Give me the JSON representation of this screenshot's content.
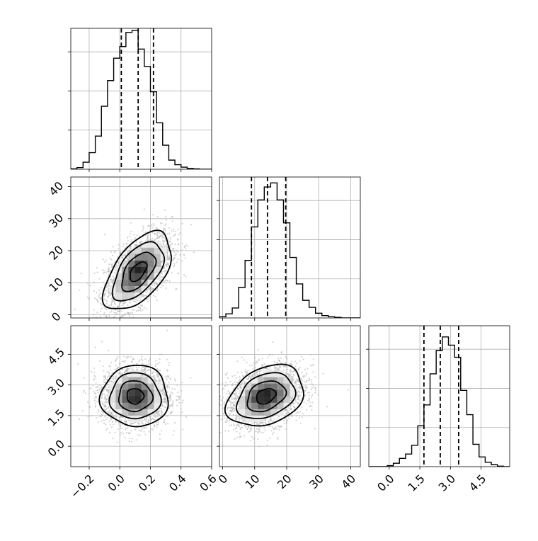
{
  "chart_data": {
    "type": "corner",
    "parameters": [
      "",
      "",
      ""
    ],
    "grid": true,
    "colors": {
      "line": "#000000",
      "scatter": "#b0b0b0",
      "grid": "#b0b0b0"
    },
    "axes": {
      "p0": {
        "range": [
          -0.32,
          0.6
        ],
        "ticks": [
          -0.2,
          0.0,
          0.2,
          0.4,
          0.6
        ],
        "tick_labels": [
          "−0.2",
          "0.0",
          "0.2",
          "0.4",
          "0.6"
        ]
      },
      "p1": {
        "range": [
          -1,
          43
        ],
        "ticks": [
          0,
          10,
          20,
          30,
          40
        ],
        "tick_labels": [
          "0",
          "10",
          "20",
          "30",
          "40"
        ]
      },
      "p2": {
        "range": [
          -1.0,
          5.9
        ],
        "ticks": [
          0.0,
          1.5,
          3.0,
          4.5
        ],
        "tick_labels": [
          "0.0",
          "1.5",
          "3.0",
          "4.5"
        ]
      }
    },
    "histograms": [
      {
        "param": "p0",
        "bin_start": -0.32,
        "bin_width": 0.04,
        "counts": [
          1,
          4,
          17,
          40,
          80,
          152,
          214,
          268,
          296,
          330,
          335,
          290,
          248,
          187,
          112,
          58,
          22,
          11,
          5,
          2,
          1,
          0,
          0
        ],
        "quantiles": [
          0.01,
          0.12,
          0.22
        ],
        "ylim": [
          0,
          340
        ]
      },
      {
        "param": "p1",
        "bin_start": -1,
        "bin_width": 2,
        "counts": [
          2,
          7,
          17,
          52,
          98,
          155,
          201,
          223,
          230,
          201,
          162,
          103,
          58,
          30,
          18,
          8,
          4,
          2,
          1,
          0,
          0,
          0
        ],
        "quantiles": [
          9,
          14,
          19.7
        ],
        "ylim": [
          0,
          240
        ]
      },
      {
        "param": "p2",
        "bin_start": -1.0,
        "bin_width": 0.3,
        "counts": [
          0,
          0,
          0,
          2,
          7,
          17,
          26,
          44,
          84,
          127,
          191,
          239,
          267,
          250,
          225,
          157,
          107,
          46,
          20,
          9,
          4,
          1,
          0
        ],
        "quantiles": [
          1.7,
          2.5,
          3.4
        ],
        "ylim": [
          0,
          290
        ]
      }
    ],
    "pairs": [
      {
        "x": "p0",
        "y": "p1",
        "mean": [
          0.12,
          13.5
        ],
        "sd": [
          0.11,
          6.1
        ],
        "corr": 0.55
      },
      {
        "x": "p0",
        "y": "p2",
        "mean": [
          0.1,
          2.45
        ],
        "sd": [
          0.11,
          0.75
        ],
        "corr": 0.0
      },
      {
        "x": "p1",
        "y": "p2",
        "mean": [
          13.5,
          2.45
        ],
        "sd": [
          6.0,
          0.75
        ],
        "corr": 0.3
      }
    ],
    "contour_levels_sigma": [
      0.5,
      1.0,
      1.5,
      2.0
    ],
    "samples_shown": 2400
  }
}
